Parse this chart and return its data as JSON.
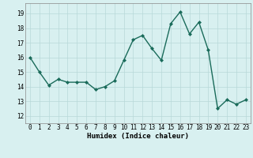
{
  "x": [
    0,
    1,
    2,
    3,
    4,
    5,
    6,
    7,
    8,
    9,
    10,
    11,
    12,
    13,
    14,
    15,
    16,
    17,
    18,
    19,
    20,
    21,
    22,
    23
  ],
  "y": [
    16.0,
    15.0,
    14.1,
    14.5,
    14.3,
    14.3,
    14.3,
    13.8,
    14.0,
    14.4,
    15.8,
    17.2,
    17.5,
    16.6,
    15.8,
    18.3,
    19.1,
    17.6,
    18.4,
    16.5,
    12.5,
    13.1,
    12.8,
    13.1
  ],
  "line_color": "#1a6b5a",
  "marker": "D",
  "marker_size": 2.0,
  "bg_color": "#d8f0f0",
  "grid_color": "#b8d8d8",
  "xlabel": "Humidex (Indice chaleur)",
  "xlim": [
    -0.5,
    23.5
  ],
  "ylim": [
    11.5,
    19.7
  ],
  "yticks": [
    12,
    13,
    14,
    15,
    16,
    17,
    18,
    19
  ],
  "xticks": [
    0,
    1,
    2,
    3,
    4,
    5,
    6,
    7,
    8,
    9,
    10,
    11,
    12,
    13,
    14,
    15,
    16,
    17,
    18,
    19,
    20,
    21,
    22,
    23
  ],
  "tick_fontsize": 5.5,
  "xlabel_fontsize": 6.5,
  "line_width": 1.0
}
